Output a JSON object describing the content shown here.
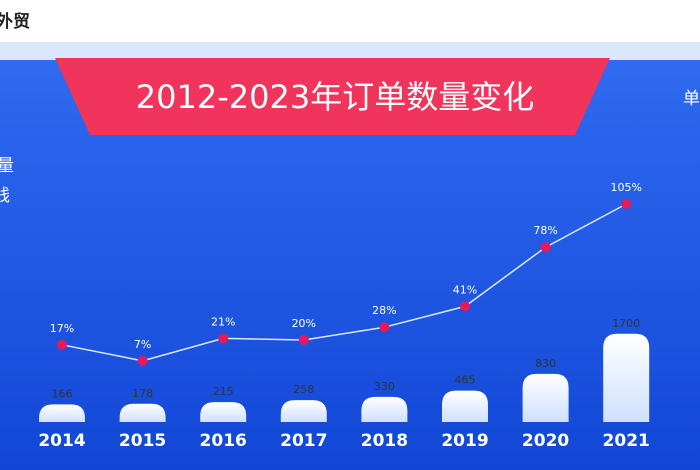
{
  "header": {
    "brand": "外贸"
  },
  "side_labels": {
    "left_top": "量",
    "left_bottom": "钱",
    "right": "单"
  },
  "chart_data": {
    "type": "bar-line",
    "title": "2012-2023年订单数量变化",
    "categories": [
      "2014",
      "2015",
      "2016",
      "2017",
      "2018",
      "2019",
      "2020",
      "2021"
    ],
    "series": [
      {
        "type": "bar",
        "color": "#ffffff",
        "values": [
          166,
          178,
          215,
          258,
          330,
          465,
          830,
          1700
        ]
      },
      {
        "type": "line",
        "color": "#e8185a",
        "values": [
          17,
          7,
          21,
          20,
          28,
          41,
          78,
          105
        ],
        "value_labels": [
          "17%",
          "7%",
          "21%",
          "20%",
          "28%",
          "41%",
          "78%",
          "105%"
        ]
      }
    ]
  }
}
